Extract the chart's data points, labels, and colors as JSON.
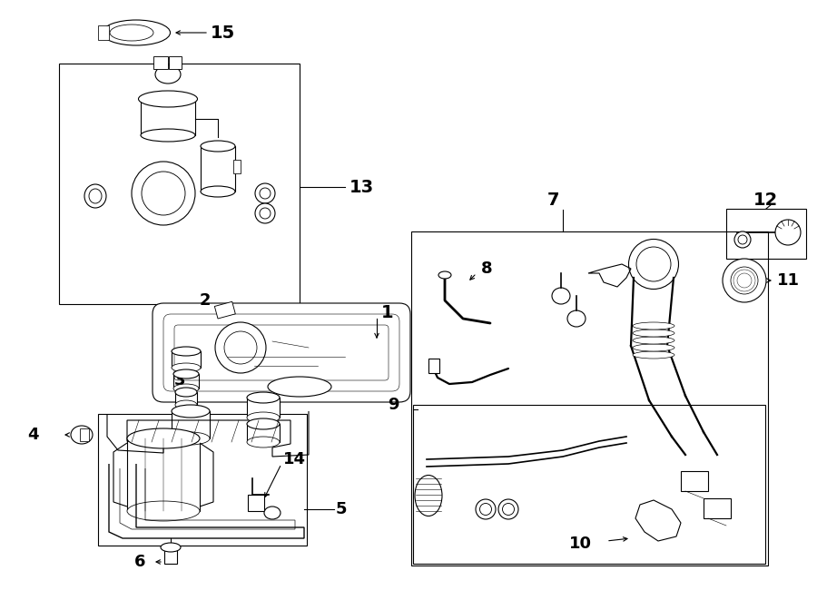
{
  "bg_color": "#ffffff",
  "line_color": "#000000",
  "fig_width": 9.0,
  "fig_height": 6.61,
  "dpi": 100,
  "lw": 0.8
}
